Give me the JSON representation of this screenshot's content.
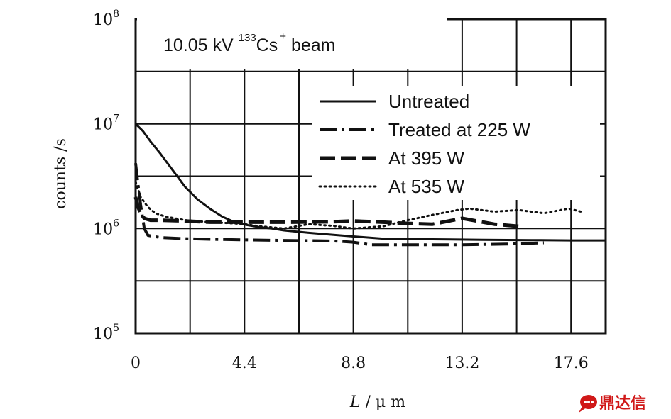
{
  "chart_data": {
    "type": "line",
    "annotation": {
      "prefix": "10.05 kV ",
      "isotope": "133",
      "element": "Cs",
      "charge": "+",
      "suffix": " beam"
    },
    "xlabel": {
      "var": "L",
      "sep": " / ",
      "unit": "μ m"
    },
    "ylabel": "counts /s",
    "xlim": [
      0,
      19
    ],
    "ylim": [
      100000,
      100000000
    ],
    "yscale": "log",
    "grid": true,
    "legend_position": "top-right",
    "x_ticks": [
      "0",
      "4.4",
      "8.8",
      "13.2",
      "17.6"
    ],
    "x_tick_values": [
      0,
      4.4,
      8.8,
      13.2,
      17.6
    ],
    "y_ticks": [
      {
        "base": "10",
        "exp": "5",
        "value": 100000
      },
      {
        "base": "10",
        "exp": "6",
        "value": 1000000
      },
      {
        "base": "10",
        "exp": "7",
        "value": 10000000
      },
      {
        "base": "10",
        "exp": "8",
        "value": 100000000
      }
    ],
    "series": [
      {
        "name": "Untreated",
        "style": "solid",
        "x": [
          0,
          0.3,
          0.6,
          1.0,
          1.5,
          2.0,
          2.5,
          3.0,
          3.5,
          4.0,
          4.5,
          5.0,
          5.5,
          6.0,
          7.0,
          8.0,
          8.8,
          10.0,
          12.0,
          14.0,
          16.0,
          17.6,
          19.0
        ],
        "y": [
          10000000,
          8500000,
          6800000,
          5200000,
          3600000,
          2500000,
          1900000,
          1550000,
          1300000,
          1150000,
          1080000,
          1030000,
          1000000,
          960000,
          910000,
          870000,
          840000,
          800000,
          790000,
          780000,
          775000,
          770000,
          770000
        ]
      },
      {
        "name": "Treated at 225 W",
        "style": "dashdot",
        "x": [
          0,
          0.1,
          0.2,
          0.35,
          0.5,
          1.0,
          2.0,
          3.0,
          4.4,
          6.0,
          8.0,
          8.8,
          9.5,
          11.0,
          13.2,
          15.0,
          16.5
        ],
        "y": [
          4200000,
          2600000,
          1700000,
          1000000,
          860000,
          820000,
          800000,
          790000,
          780000,
          770000,
          760000,
          740000,
          700000,
          700000,
          700000,
          710000,
          730000
        ]
      },
      {
        "name": "At 395 W",
        "style": "dashed",
        "x": [
          0,
          0.1,
          0.2,
          0.35,
          0.6,
          1.0,
          2.0,
          3.0,
          4.4,
          6.0,
          8.0,
          8.8,
          10.0,
          11.0,
          12.0,
          13.2,
          14.5,
          15.5
        ],
        "y": [
          2000000,
          1600000,
          1400000,
          1250000,
          1200000,
          1200000,
          1180000,
          1150000,
          1150000,
          1150000,
          1160000,
          1180000,
          1150000,
          1120000,
          1100000,
          1250000,
          1100000,
          1050000
        ]
      },
      {
        "name": "At 535 W",
        "style": "dotted",
        "x": [
          0,
          0.2,
          0.5,
          0.8,
          1.2,
          2.0,
          3.0,
          4.0,
          4.4,
          5.0,
          6.0,
          7.0,
          8.0,
          8.8,
          10.0,
          11.0,
          12.0,
          13.0,
          13.5,
          14.5,
          15.5,
          16.5,
          17.5,
          18.0
        ],
        "y": [
          2800000,
          2000000,
          1600000,
          1400000,
          1300000,
          1200000,
          1150000,
          1120000,
          1100000,
          1050000,
          1000000,
          1100000,
          1060000,
          1000000,
          1050000,
          1200000,
          1350000,
          1500000,
          1550000,
          1450000,
          1500000,
          1400000,
          1550000,
          1450000
        ]
      }
    ]
  },
  "watermark": {
    "icon": "chat-bubble-icon",
    "text": "鼎达信"
  }
}
